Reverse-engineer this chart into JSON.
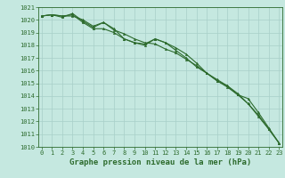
{
  "title": "Graphe pression niveau de la mer (hPa)",
  "background_color": "#c5e8e0",
  "grid_color": "#a8cfc8",
  "line_color": "#2d6b2d",
  "x_values": [
    0,
    1,
    2,
    3,
    4,
    5,
    6,
    7,
    8,
    9,
    10,
    11,
    12,
    13,
    14,
    15,
    16,
    17,
    18,
    19,
    20,
    21,
    22,
    23
  ],
  "line1": [
    1020.3,
    1020.4,
    1020.3,
    1020.3,
    1020.0,
    1019.5,
    1019.8,
    1019.3,
    1018.5,
    1018.2,
    1018.1,
    1018.5,
    1018.2,
    1017.6,
    1017.0,
    1016.3,
    1015.8,
    1015.2,
    1014.7,
    1014.1,
    1013.4,
    1012.5,
    1011.4,
    1010.3
  ],
  "line2": [
    1020.3,
    1020.4,
    1020.2,
    1020.5,
    1019.9,
    1019.4,
    1019.8,
    1019.2,
    1018.9,
    1018.5,
    1018.2,
    1018.1,
    1017.7,
    1017.4,
    1016.9,
    1016.4,
    1015.8,
    1015.3,
    1014.8,
    1014.1,
    1013.8,
    1012.7,
    1011.5,
    1010.3
  ],
  "line3": [
    1020.3,
    1020.4,
    1020.3,
    1020.4,
    1019.8,
    1019.3,
    1019.3,
    1019.0,
    1018.5,
    1018.2,
    1018.0,
    1018.5,
    1018.2,
    1017.8,
    1017.3,
    1016.6,
    1015.8,
    1015.2,
    1014.8,
    1014.2,
    1013.4,
    1012.4,
    1011.4,
    1010.3
  ],
  "ylim_min": 1010,
  "ylim_max": 1021,
  "marker": "^",
  "marker_size": 1.8,
  "line_width": 0.8,
  "title_fontsize": 6.5,
  "tick_fontsize": 5.0
}
